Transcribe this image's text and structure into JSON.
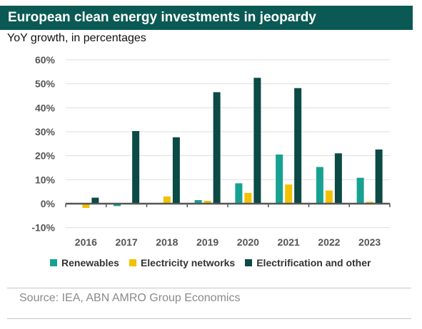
{
  "title": "European clean energy investments in jeopardy",
  "subtitle": "YoY growth, in percentages",
  "source": "Source: IEA, ABN AMRO Group Economics",
  "colors": {
    "title_bg": "#0b5954",
    "renewables": "#17a192",
    "electricity_networks": "#f2c200",
    "electrification": "#0b4a45",
    "grid": "#dedede",
    "axis": "#555555"
  },
  "chart_data": {
    "type": "bar",
    "categories": [
      "2016",
      "2017",
      "2018",
      "2019",
      "2020",
      "2021",
      "2022",
      "2023"
    ],
    "series": [
      {
        "name": "Renewables",
        "color": "#17a192",
        "values": [
          0,
          -1,
          0,
          1.5,
          8.5,
          20.5,
          15.3,
          10.8
        ]
      },
      {
        "name": "Electricity networks",
        "color": "#f2c200",
        "values": [
          -1.8,
          0,
          3,
          1.2,
          4.5,
          8,
          5.5,
          0.8
        ]
      },
      {
        "name": "Electrification and other",
        "color": "#0b4a45",
        "values": [
          2.5,
          30.3,
          27.7,
          46.5,
          52.5,
          48.2,
          21,
          22.6
        ]
      }
    ],
    "yticks": [
      "60%",
      "50%",
      "40%",
      "30%",
      "20%",
      "10%",
      "0%",
      "-10%"
    ],
    "ytick_values": [
      60,
      50,
      40,
      30,
      20,
      10,
      0,
      -10
    ],
    "ylim": [
      -10,
      60
    ],
    "grid": true,
    "legend_position": "bottom"
  }
}
